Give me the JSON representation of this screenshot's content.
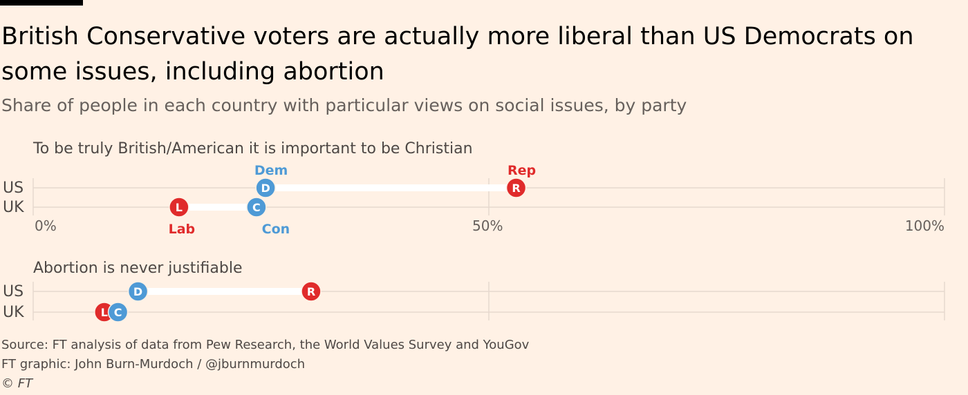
{
  "header": {
    "title": "British Conservative voters are actually more liberal than US Democrats on some issues, including abortion",
    "subtitle": "Share of people in each country with particular views on social issues, by party"
  },
  "footer": {
    "source": "Source: FT analysis of data from Pew Research, the World Values Survey and YouGov",
    "credit": "FT graphic: John Burn-Murdoch / @jburnmurdoch",
    "copyright": "© FT"
  },
  "colors": {
    "background": "#FFF1E5",
    "left_party": "#4E9AD6",
    "right_party": "#E02B2B",
    "gridline": "#E6D9CE",
    "connector": "#FFFFFF"
  },
  "chart_data": [
    {
      "type": "dumbbell",
      "title": "To be truly British/American it is important to be Christian",
      "xlim": [
        0,
        100
      ],
      "x_ticks": [
        "0%",
        "50%",
        "100%"
      ],
      "x_tick_values": [
        0,
        50,
        100
      ],
      "show_tick_labels": true,
      "rows": [
        {
          "country": "US",
          "points": [
            {
              "party": "Dem",
              "letter": "D",
              "value": 25.5,
              "color": "#4E9AD6",
              "label": "Dem"
            },
            {
              "party": "Rep",
              "letter": "R",
              "value": 53,
              "color": "#E02B2B",
              "label": "Rep"
            }
          ]
        },
        {
          "country": "UK",
          "points": [
            {
              "party": "Lab",
              "letter": "L",
              "value": 16,
              "color": "#E02B2B",
              "label": "Lab"
            },
            {
              "party": "Con",
              "letter": "C",
              "value": 24.5,
              "color": "#4E9AD6",
              "label": "Con"
            }
          ]
        }
      ]
    },
    {
      "type": "dumbbell",
      "title": "Abortion is never justifiable",
      "xlim": [
        0,
        100
      ],
      "x_ticks": [],
      "x_tick_values": [
        0,
        50,
        100
      ],
      "show_tick_labels": false,
      "rows": [
        {
          "country": "US",
          "points": [
            {
              "party": "Dem",
              "letter": "D",
              "value": 11.5,
              "color": "#4E9AD6",
              "label": ""
            },
            {
              "party": "Rep",
              "letter": "R",
              "value": 30.5,
              "color": "#E02B2B",
              "label": ""
            }
          ]
        },
        {
          "country": "UK",
          "points": [
            {
              "party": "Lab",
              "letter": "L",
              "value": 7.8,
              "color": "#E02B2B",
              "label": ""
            },
            {
              "party": "Con",
              "letter": "C",
              "value": 9.3,
              "color": "#4E9AD6",
              "label": ""
            }
          ]
        }
      ]
    }
  ]
}
